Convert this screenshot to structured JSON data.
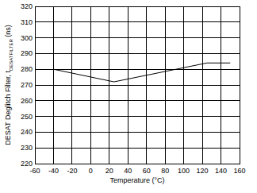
{
  "chart_data": {
    "type": "line",
    "xlabel": "Temperature (°C)",
    "ylabel": [
      "DESAT Deglitch Filter, t",
      "DESATFILTER",
      " (ns)"
    ],
    "x": [
      -40,
      25,
      125,
      150
    ],
    "values": [
      280,
      272,
      284,
      284
    ],
    "color": "#000000",
    "xlim": [
      -60,
      160
    ],
    "xticks": [
      -60,
      -40,
      -20,
      0,
      20,
      40,
      60,
      80,
      100,
      120,
      140,
      160
    ],
    "ylim": [
      220,
      320
    ],
    "yticks": [
      220,
      230,
      240,
      250,
      260,
      270,
      280,
      290,
      300,
      310,
      320
    ],
    "grid": true
  }
}
